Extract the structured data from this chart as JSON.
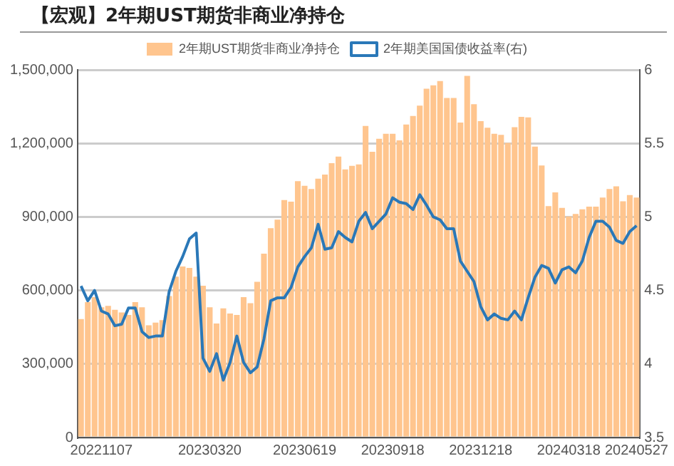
{
  "chart_data": {
    "type": "bar",
    "title": "【宏观】2年期UST期货非商业净持仓",
    "categories": [
      null,
      null,
      null,
      "20221107",
      null,
      null,
      null,
      null,
      null,
      null,
      null,
      null,
      null,
      null,
      null,
      null,
      null,
      null,
      null,
      "20230320",
      null,
      null,
      null,
      null,
      null,
      null,
      null,
      null,
      null,
      null,
      null,
      null,
      null,
      "20230619",
      null,
      null,
      null,
      null,
      null,
      null,
      null,
      null,
      null,
      null,
      null,
      null,
      "20230918",
      null,
      null,
      null,
      null,
      null,
      null,
      null,
      null,
      null,
      null,
      null,
      null,
      "20231218",
      null,
      null,
      null,
      null,
      null,
      null,
      null,
      null,
      null,
      null,
      null,
      null,
      "20240318",
      null,
      null,
      null,
      null,
      null,
      null,
      null,
      null,
      null,
      "20240527"
    ],
    "series": [
      {
        "name": "2年期UST期货非商业净持仓",
        "color": "#ffc58e",
        "values": [
          483000,
          552000,
          573000,
          531000,
          537000,
          521000,
          510000,
          500000,
          552000,
          531000,
          458000,
          469000,
          479000,
          577000,
          656000,
          698000,
          692000,
          656000,
          619000,
          531000,
          465000,
          527000,
          506000,
          500000,
          573000,
          548000,
          635000,
          750000,
          854000,
          889000,
          969000,
          962000,
          1046000,
          1027000,
          1014000,
          1056000,
          1073000,
          1119000,
          1146000,
          1094000,
          1108000,
          1114000,
          1271000,
          1166000,
          1219000,
          1239000,
          1239000,
          1212000,
          1277000,
          1312000,
          1354000,
          1423000,
          1437000,
          1454000,
          1385000,
          1385000,
          1285000,
          1475000,
          1360000,
          1291000,
          1264000,
          1239000,
          1235000,
          1202000,
          1266000,
          1308000,
          1306000,
          1187000,
          1110000,
          944000,
          1000000,
          937000,
          902000,
          912000,
          931000,
          942000,
          942000,
          979000,
          1014000,
          1025000,
          964000,
          989000,
          979000
        ]
      },
      {
        "name": "2年期美国国债收益率(右)",
        "type": "line",
        "axis": "y2",
        "color": "#2a78b8",
        "values": [
          4.53,
          4.43,
          4.5,
          4.36,
          4.34,
          4.26,
          4.27,
          4.38,
          4.38,
          4.22,
          4.18,
          4.19,
          4.19,
          4.49,
          4.63,
          4.73,
          4.85,
          4.89,
          4.04,
          3.95,
          4.07,
          3.89,
          4.01,
          4.19,
          4.01,
          3.94,
          3.98,
          4.17,
          4.43,
          4.45,
          4.45,
          4.52,
          4.66,
          4.73,
          4.79,
          4.95,
          4.78,
          4.79,
          4.9,
          4.86,
          4.83,
          4.97,
          5.03,
          4.92,
          4.97,
          5.02,
          5.13,
          5.1,
          5.09,
          5.05,
          5.15,
          5.08,
          5.0,
          4.98,
          4.92,
          4.92,
          4.7,
          4.63,
          4.56,
          4.39,
          4.3,
          4.34,
          4.31,
          4.3,
          4.36,
          4.3,
          4.45,
          4.59,
          4.67,
          4.65,
          4.55,
          4.64,
          4.66,
          4.62,
          4.7,
          4.86,
          4.97,
          4.97,
          4.93,
          4.84,
          4.82,
          4.9,
          4.94
        ]
      }
    ],
    "ylim": [
      0,
      1500000
    ],
    "yticks": [
      0,
      {
        "value": 300000,
        "label": "300,000"
      },
      {
        "value": 600000,
        "label": "600,000"
      },
      {
        "value": 900000,
        "label": "900,000"
      },
      {
        "value": 1200000,
        "label": "1,200,000"
      },
      {
        "value": 1500000,
        "label": "1,500,000"
      }
    ],
    "y2lim": [
      3.5,
      6
    ],
    "y2ticks": [
      3.5,
      4,
      4.5,
      5,
      5.5,
      6
    ],
    "grid": "y",
    "legend": "top",
    "marker": "none",
    "line_style": "solid"
  }
}
